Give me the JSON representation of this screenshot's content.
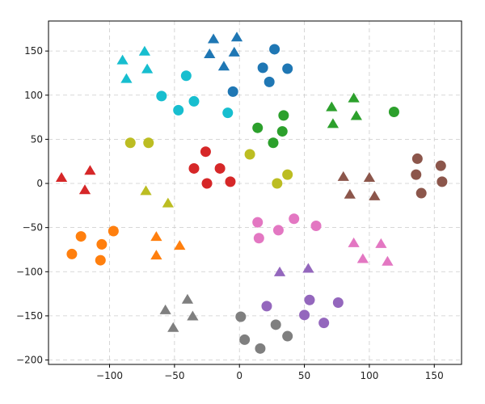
{
  "chart_data": {
    "type": "scatter",
    "title": "",
    "xlabel": "",
    "ylabel": "",
    "xlim": [
      -147,
      171
    ],
    "ylim": [
      -205,
      184
    ],
    "xticks": [
      -100,
      -50,
      0,
      50,
      100,
      150
    ],
    "yticks": [
      -200,
      -150,
      -100,
      -50,
      0,
      50,
      100,
      150
    ],
    "grid": true,
    "legend": "none",
    "series": [
      {
        "color": "#1f77b4",
        "marker": "circle",
        "points": [
          [
            -5,
            104
          ],
          [
            18,
            131
          ],
          [
            23,
            115
          ],
          [
            27,
            152
          ],
          [
            37,
            130
          ]
        ]
      },
      {
        "color": "#1f77b4",
        "marker": "triangle",
        "points": [
          [
            -23,
            146
          ],
          [
            -20,
            163
          ],
          [
            -12,
            132
          ],
          [
            -4,
            148
          ],
          [
            -2,
            165
          ]
        ]
      },
      {
        "color": "#17becf",
        "marker": "triangle",
        "points": [
          [
            -90,
            139
          ],
          [
            -87,
            118
          ],
          [
            -73,
            149
          ],
          [
            -71,
            129
          ]
        ]
      },
      {
        "color": "#17becf",
        "marker": "circle",
        "points": [
          [
            -60,
            99
          ],
          [
            -47,
            83
          ],
          [
            -41,
            122
          ],
          [
            -35,
            93
          ],
          [
            -9,
            80
          ]
        ]
      },
      {
        "color": "#bcbd22",
        "marker": "circle",
        "points": [
          [
            -84,
            46
          ],
          [
            -70,
            46
          ],
          [
            8,
            33
          ],
          [
            29,
            0
          ],
          [
            37,
            10
          ]
        ]
      },
      {
        "color": "#bcbd22",
        "marker": "triangle",
        "points": [
          [
            -72,
            -9
          ],
          [
            -55,
            -23
          ]
        ]
      },
      {
        "color": "#d62728",
        "marker": "circle",
        "points": [
          [
            -35,
            17
          ],
          [
            -26,
            36
          ],
          [
            -25,
            0
          ],
          [
            -15,
            17
          ],
          [
            -7,
            2
          ]
        ]
      },
      {
        "color": "#d62728",
        "marker": "triangle",
        "points": [
          [
            -137,
            6
          ],
          [
            -119,
            -8
          ],
          [
            -115,
            14
          ]
        ]
      },
      {
        "color": "#2ca02c",
        "marker": "circle",
        "points": [
          [
            14,
            63
          ],
          [
            26,
            46
          ],
          [
            33,
            59
          ],
          [
            34,
            77
          ],
          [
            119,
            81
          ]
        ]
      },
      {
        "color": "#2ca02c",
        "marker": "triangle",
        "points": [
          [
            71,
            86
          ],
          [
            72,
            67
          ],
          [
            88,
            96
          ],
          [
            90,
            76
          ]
        ]
      },
      {
        "color": "#8c564b",
        "marker": "triangle",
        "points": [
          [
            80,
            7
          ],
          [
            85,
            -13
          ],
          [
            100,
            6
          ],
          [
            104,
            -15
          ]
        ]
      },
      {
        "color": "#8c564b",
        "marker": "circle",
        "points": [
          [
            136,
            10
          ],
          [
            137,
            28
          ],
          [
            140,
            -11
          ],
          [
            155,
            20
          ],
          [
            156,
            2
          ]
        ]
      },
      {
        "color": "#ff7f0e",
        "marker": "circle",
        "points": [
          [
            -129,
            -80
          ],
          [
            -122,
            -60
          ],
          [
            -107,
            -87
          ],
          [
            -106,
            -69
          ],
          [
            -97,
            -54
          ]
        ]
      },
      {
        "color": "#ff7f0e",
        "marker": "triangle",
        "points": [
          [
            -64,
            -61
          ],
          [
            -64,
            -82
          ],
          [
            -46,
            -71
          ]
        ]
      },
      {
        "color": "#e377c2",
        "marker": "circle",
        "points": [
          [
            14,
            -44
          ],
          [
            15,
            -62
          ],
          [
            30,
            -53
          ],
          [
            42,
            -40
          ],
          [
            59,
            -48
          ]
        ]
      },
      {
        "color": "#e377c2",
        "marker": "triangle",
        "points": [
          [
            88,
            -68
          ],
          [
            95,
            -86
          ],
          [
            109,
            -69
          ],
          [
            114,
            -89
          ]
        ]
      },
      {
        "color": "#9467bd",
        "marker": "triangle",
        "points": [
          [
            31,
            -101
          ],
          [
            53,
            -97
          ]
        ]
      },
      {
        "color": "#9467bd",
        "marker": "circle",
        "points": [
          [
            21,
            -139
          ],
          [
            50,
            -149
          ],
          [
            54,
            -132
          ],
          [
            65,
            -158
          ],
          [
            76,
            -135
          ]
        ]
      },
      {
        "color": "#7f7f7f",
        "marker": "triangle",
        "points": [
          [
            -57,
            -144
          ],
          [
            -51,
            -164
          ],
          [
            -40,
            -132
          ],
          [
            -36,
            -151
          ]
        ]
      },
      {
        "color": "#7f7f7f",
        "marker": "circle",
        "points": [
          [
            1,
            -151
          ],
          [
            4,
            -177
          ],
          [
            16,
            -187
          ],
          [
            28,
            -160
          ],
          [
            37,
            -173
          ]
        ]
      }
    ]
  }
}
